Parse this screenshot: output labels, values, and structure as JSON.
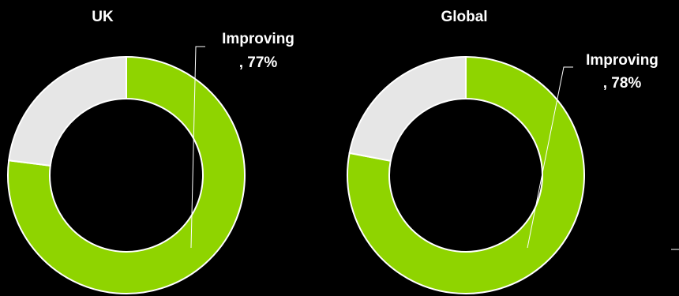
{
  "chart_data": [
    {
      "type": "pie",
      "title": "UK",
      "slices": [
        {
          "label": "Improving",
          "value": 77,
          "value_text": "77%",
          "color": "#8fd400",
          "labeled": true
        },
        {
          "label": "",
          "value": 23,
          "value_text": "",
          "color": "#e6e6e6",
          "labeled": false
        }
      ],
      "label_lines": [
        "Improving",
        ", 77%"
      ]
    },
    {
      "type": "pie",
      "title": "Global",
      "slices": [
        {
          "label": "Improving",
          "value": 78,
          "value_text": "78%",
          "color": "#8fd400",
          "labeled": true
        },
        {
          "label": "",
          "value": 22,
          "value_text": "",
          "color": "#e6e6e6",
          "labeled": false
        }
      ],
      "label_lines": [
        "Improving",
        ", 78%"
      ]
    }
  ],
  "colors": {
    "background": "#000000",
    "accent": "#8fd400",
    "remainder": "#e6e6e6",
    "text": "#ffffff"
  }
}
